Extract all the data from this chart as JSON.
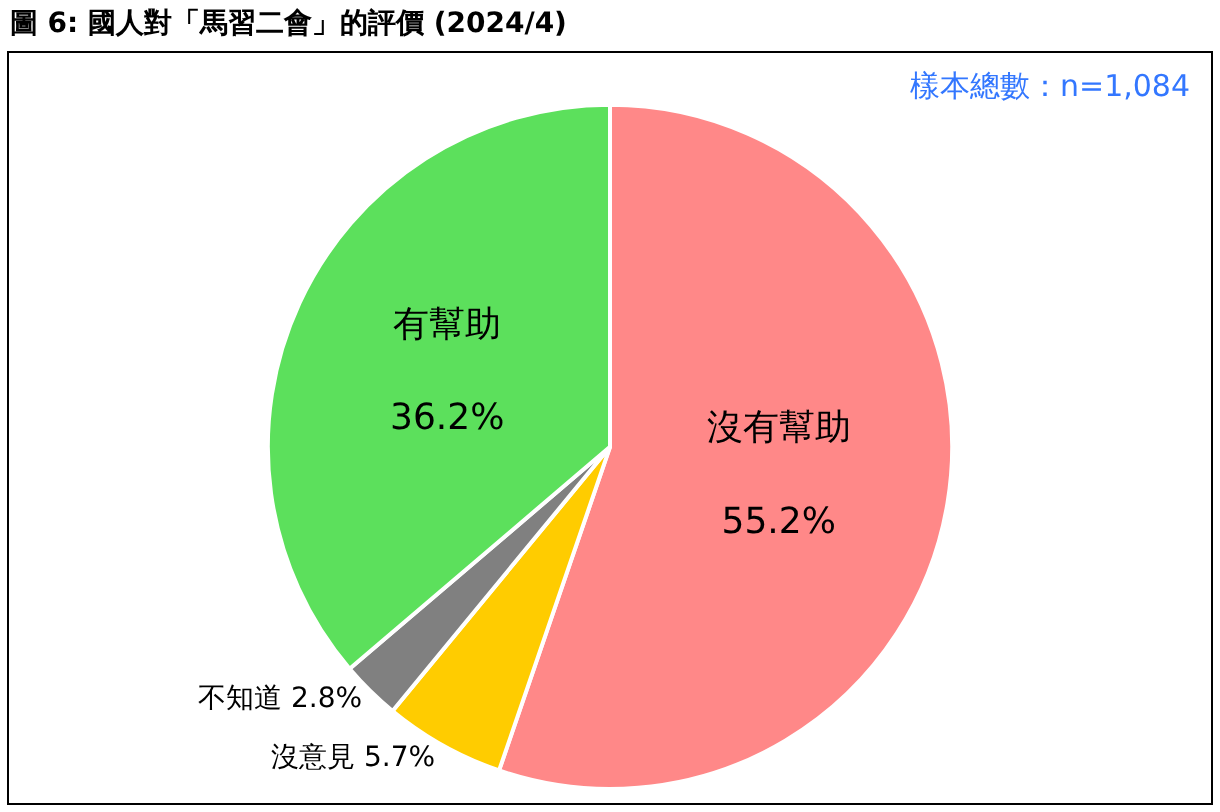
{
  "chart_data": {
    "type": "pie",
    "title": "圖 6: 國人對「馬習二會」的評價 (2024/4)",
    "categories": [
      "沒有幫助",
      "沒意見",
      "不知道",
      "有幫助"
    ],
    "values": [
      55.2,
      5.7,
      2.8,
      36.2
    ],
    "value_labels": [
      "55.2%",
      "5.7%",
      "2.8%",
      "36.2%"
    ],
    "colors": [
      "#ff8888",
      "#ffcc00",
      "#808080",
      "#5ce05c"
    ],
    "annotations": [
      "樣本總數：n=1,084"
    ],
    "legend": false
  }
}
